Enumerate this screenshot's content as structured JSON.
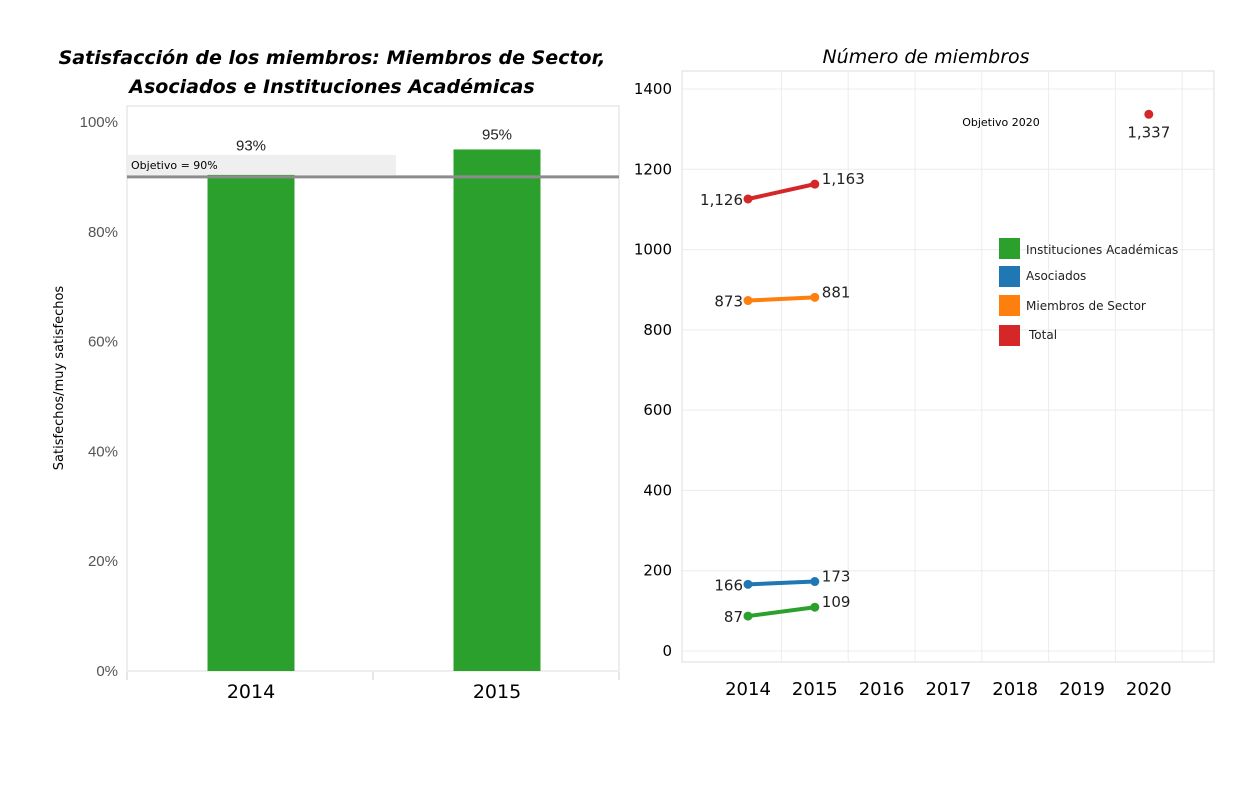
{
  "chart_data": [
    {
      "type": "bar",
      "title_line1": "Satisfacción de los miembros: Miembros de Sector,",
      "title_line2": "Asociados e Instituciones Académicas",
      "ylabel": "Satisfechos/muy satisfechos",
      "categories": [
        "2014",
        "2015"
      ],
      "values": [
        93,
        95
      ],
      "value_labels": [
        "93%",
        "95%"
      ],
      "ylim": [
        0,
        100
      ],
      "yticks": [
        0,
        20,
        40,
        60,
        80,
        100
      ],
      "ytick_labels": [
        "0%",
        "20%",
        "40%",
        "60%",
        "80%",
        "100%"
      ],
      "bar_color": "#2ca02c",
      "target": {
        "value": 90,
        "label": "Objetivo = 90%",
        "color": "#8c8c8c"
      }
    },
    {
      "type": "line",
      "title": "Número de miembros",
      "x": [
        "2014",
        "2015",
        "2016",
        "2017",
        "2018",
        "2019",
        "2020"
      ],
      "ylim": [
        0,
        1400
      ],
      "yticks": [
        0,
        200,
        400,
        600,
        800,
        1000,
        1200,
        1400
      ],
      "series": [
        {
          "name": "Instituciones Académicas",
          "color": "#2ca02c",
          "points": [
            [
              2014,
              87
            ],
            [
              2015,
              109
            ]
          ],
          "labels": [
            "87",
            "109"
          ]
        },
        {
          "name": "Asociados",
          "color": "#1f77b4",
          "points": [
            [
              2014,
              166
            ],
            [
              2015,
              173
            ]
          ],
          "labels": [
            "166",
            "173"
          ]
        },
        {
          "name": "Miembros de Sector",
          "color": "#ff7f0e",
          "points": [
            [
              2014,
              873
            ],
            [
              2015,
              881
            ]
          ],
          "labels": [
            "873",
            "881"
          ]
        },
        {
          "name": "Total",
          "color": "#d62728",
          "points": [
            [
              2014,
              1126
            ],
            [
              2015,
              1163
            ]
          ],
          "labels": [
            "1,126",
            "1,163"
          ]
        }
      ],
      "target_point": {
        "x": 2020,
        "y": 1337,
        "label": "1,337",
        "annotation": "Objetivo 2020",
        "color": "#d62728"
      },
      "legend": {
        "placement": "right-middle",
        "order": [
          "Instituciones Académicas",
          "Asociados",
          "Miembros de Sector",
          "Total"
        ]
      },
      "grid": true
    }
  ]
}
